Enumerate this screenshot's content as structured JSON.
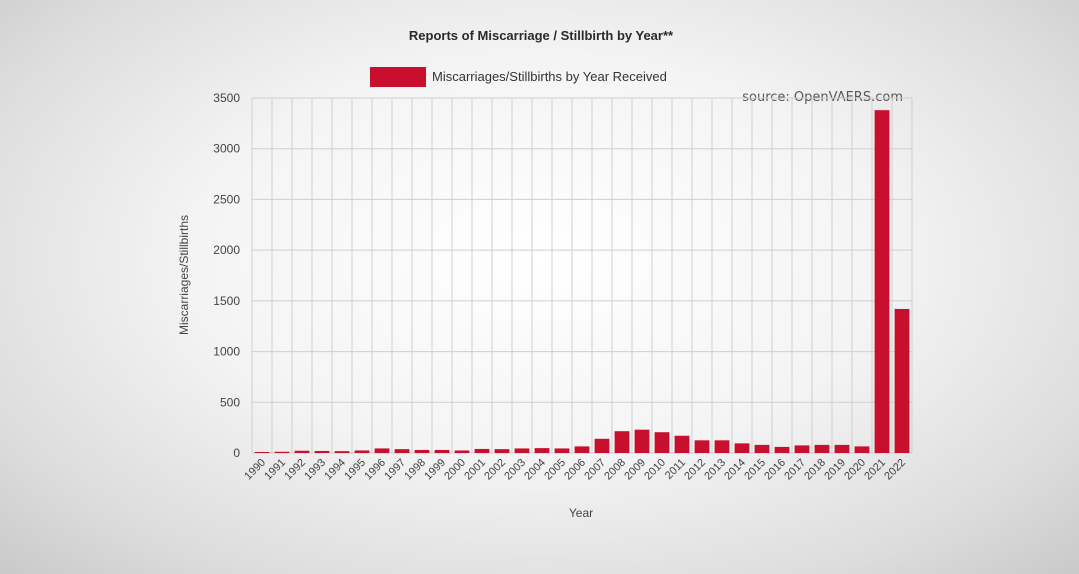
{
  "chart_data": {
    "type": "bar",
    "title": "Reports of Miscarriage / Stillbirth by Year**",
    "source": "source: OpenVAERS.com",
    "xlabel": "Year",
    "ylabel": "Miscarriages/Stillbirths",
    "ylim": [
      0,
      3500
    ],
    "yticks": [
      0,
      500,
      1000,
      1500,
      2000,
      2500,
      3000,
      3500
    ],
    "grid": true,
    "legend_position": "top-center",
    "bar_color": "#c8102e",
    "categories": [
      "1990",
      "1991",
      "1992",
      "1993",
      "1994",
      "1995",
      "1996",
      "1997",
      "1998",
      "1999",
      "2000",
      "2001",
      "2002",
      "2003",
      "2004",
      "2005",
      "2006",
      "2007",
      "2008",
      "2009",
      "2010",
      "2011",
      "2012",
      "2013",
      "2014",
      "2015",
      "2016",
      "2017",
      "2018",
      "2019",
      "2020",
      "2021",
      "2022"
    ],
    "series": [
      {
        "name": "Miscarriages/Stillbirths by Year Received",
        "values": [
          10,
          12,
          22,
          20,
          18,
          25,
          45,
          38,
          30,
          30,
          25,
          40,
          38,
          45,
          48,
          45,
          65,
          140,
          215,
          230,
          205,
          170,
          125,
          125,
          95,
          80,
          60,
          75,
          80,
          80,
          65,
          3380,
          1420
        ]
      }
    ]
  }
}
